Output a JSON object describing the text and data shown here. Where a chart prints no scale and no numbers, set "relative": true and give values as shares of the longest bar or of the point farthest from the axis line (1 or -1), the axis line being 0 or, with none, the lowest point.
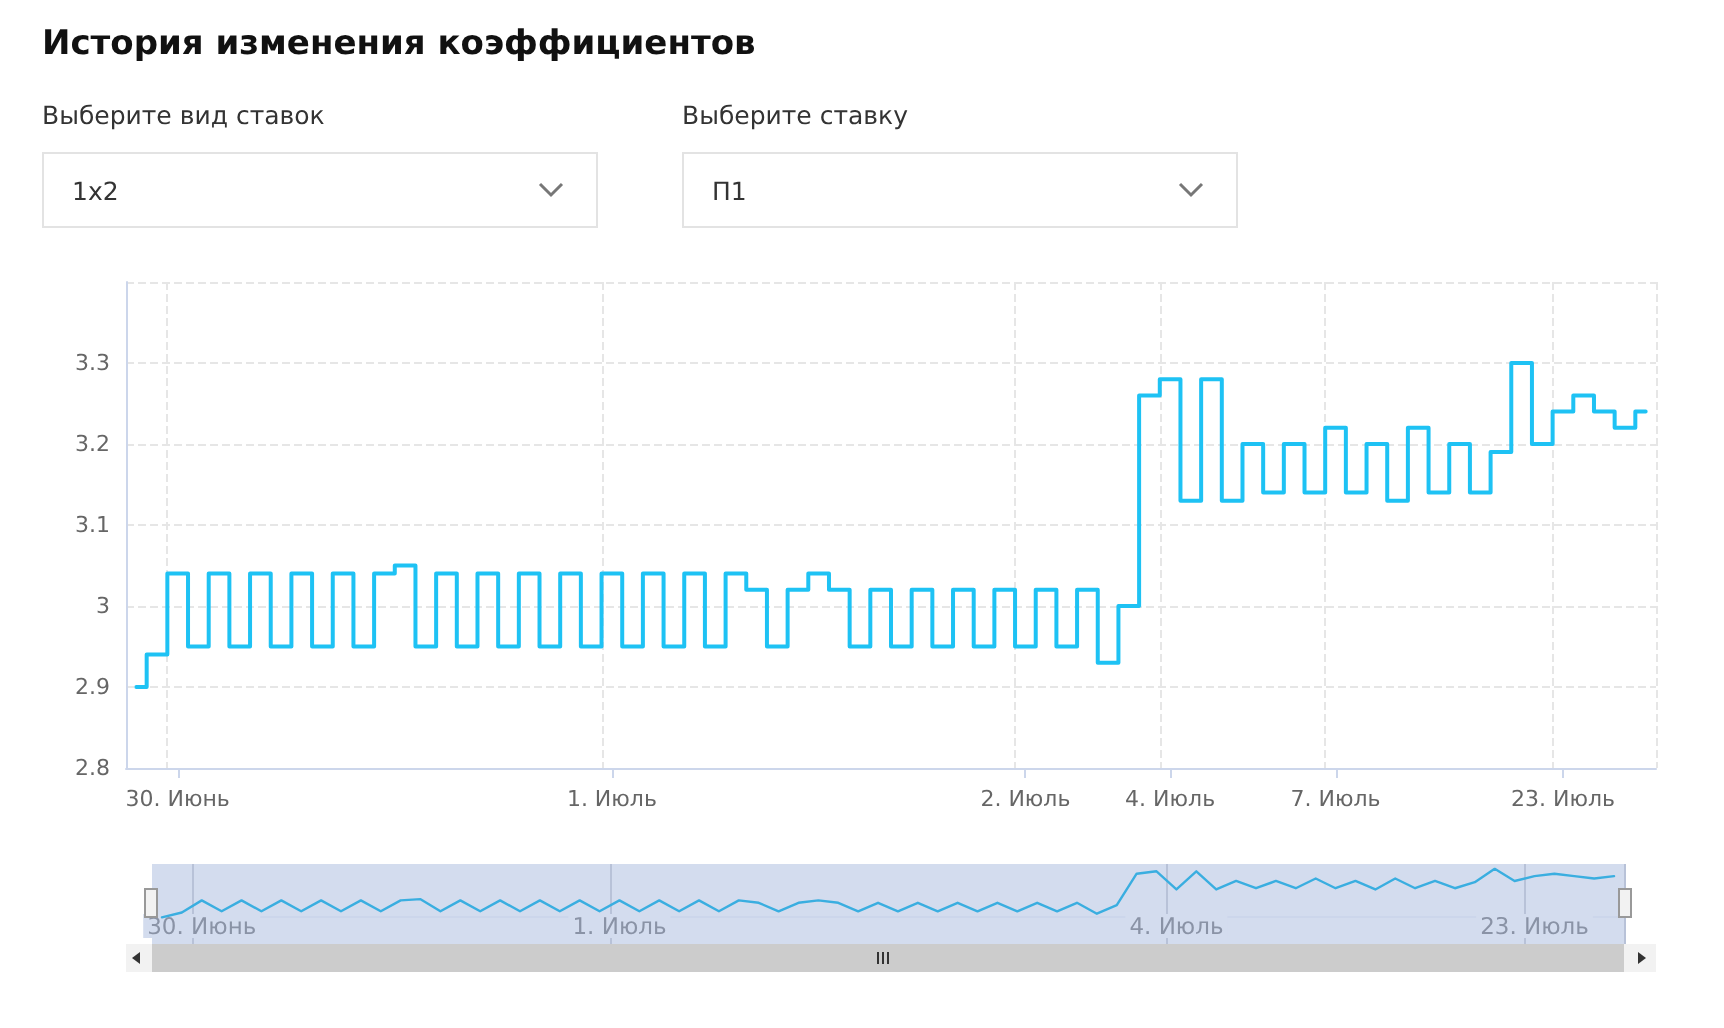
{
  "chart_data": [
    {
      "type": "step",
      "title": "История изменения коэффициентов",
      "annotations": [
        "Выберите вид ставок",
        "1x2",
        "Выберите ставку",
        "П1"
      ],
      "categories": [
        null,
        null,
        "30. Июнь",
        null,
        null,
        null,
        null,
        null,
        null,
        null,
        null,
        null,
        null,
        null,
        null,
        null,
        null,
        null,
        null,
        null,
        null,
        null,
        null,
        "1. Июль",
        null,
        null,
        null,
        null,
        null,
        null,
        null,
        null,
        null,
        null,
        null,
        null,
        null,
        null,
        null,
        null,
        null,
        null,
        null,
        "2. Июль",
        null,
        null,
        null,
        null,
        null,
        null,
        "4. Июль",
        null,
        null,
        null,
        null,
        null,
        null,
        null,
        "7. Июль",
        null,
        null,
        null,
        null,
        null,
        null,
        null,
        null,
        null,
        null,
        "23. Июль",
        null,
        null,
        null,
        null
      ],
      "series": [
        {
          "color": "#1ec2f4",
          "values": [
            2.9,
            2.94,
            3.04,
            2.95,
            3.04,
            2.95,
            3.04,
            2.95,
            3.04,
            2.95,
            3.04,
            2.95,
            3.04,
            3.05,
            2.95,
            3.04,
            2.95,
            3.04,
            2.95,
            3.04,
            2.95,
            3.04,
            2.95,
            3.04,
            2.95,
            3.04,
            2.95,
            3.04,
            2.95,
            3.04,
            3.02,
            2.95,
            3.02,
            3.04,
            3.02,
            2.95,
            3.02,
            2.95,
            3.02,
            2.95,
            3.02,
            2.95,
            3.02,
            2.95,
            3.02,
            2.95,
            3.02,
            2.93,
            3.0,
            3.26,
            3.28,
            3.13,
            3.28,
            3.13,
            3.2,
            3.14,
            3.2,
            3.14,
            3.22,
            3.14,
            3.2,
            3.13,
            3.22,
            3.14,
            3.2,
            3.14,
            3.19,
            3.3,
            3.2,
            3.24,
            3.26,
            3.24,
            3.22,
            3.24
          ]
        }
      ],
      "ylim": [
        2.8,
        3.4
      ],
      "yticks": [
        2.8,
        2.9,
        3,
        3.1,
        3.2,
        3.3,
        {
          "value": 3.4,
          "label": null
        }
      ],
      "grid": true,
      "marker": "none",
      "line_style": "solid"
    },
    {
      "type": "line",
      "categories": [
        null,
        null,
        "30. Июнь",
        null,
        null,
        null,
        null,
        null,
        null,
        null,
        null,
        null,
        null,
        null,
        null,
        null,
        null,
        null,
        null,
        null,
        null,
        null,
        null,
        "1. Июль",
        null,
        null,
        null,
        null,
        null,
        null,
        null,
        null,
        null,
        null,
        null,
        null,
        null,
        null,
        null,
        null,
        null,
        null,
        null,
        null,
        null,
        null,
        null,
        null,
        null,
        null,
        null,
        "4. Июль",
        null,
        null,
        null,
        null,
        null,
        null,
        null,
        null,
        null,
        null,
        null,
        null,
        null,
        null,
        null,
        null,
        null,
        "23. Июль",
        null,
        null,
        null,
        null
      ],
      "series": [
        {
          "color": "#3aaee0",
          "values": [
            0,
            0.1,
            0.35,
            0.125,
            0.35,
            0.125,
            0.35,
            0.125,
            0.35,
            0.125,
            0.35,
            0.125,
            0.35,
            0.375,
            0.125,
            0.35,
            0.125,
            0.35,
            0.125,
            0.35,
            0.125,
            0.35,
            0.125,
            0.35,
            0.125,
            0.35,
            0.125,
            0.35,
            0.125,
            0.35,
            0.3,
            0.125,
            0.3,
            0.35,
            0.3,
            0.125,
            0.3,
            0.125,
            0.3,
            0.125,
            0.3,
            0.125,
            0.3,
            0.125,
            0.3,
            0.125,
            0.3,
            0.075,
            0.25,
            0.9,
            0.95,
            0.575,
            0.95,
            0.575,
            0.75,
            0.6,
            0.75,
            0.6,
            0.8,
            0.6,
            0.75,
            0.575,
            0.8,
            0.6,
            0.75,
            0.6,
            0.725,
            1,
            0.75,
            0.85,
            0.9,
            0.85,
            0.8,
            0.85
          ]
        }
      ],
      "relative": true,
      "tick_labels": "x",
      "grid": "x",
      "marker": "none",
      "line_style": "solid"
    }
  ]
}
